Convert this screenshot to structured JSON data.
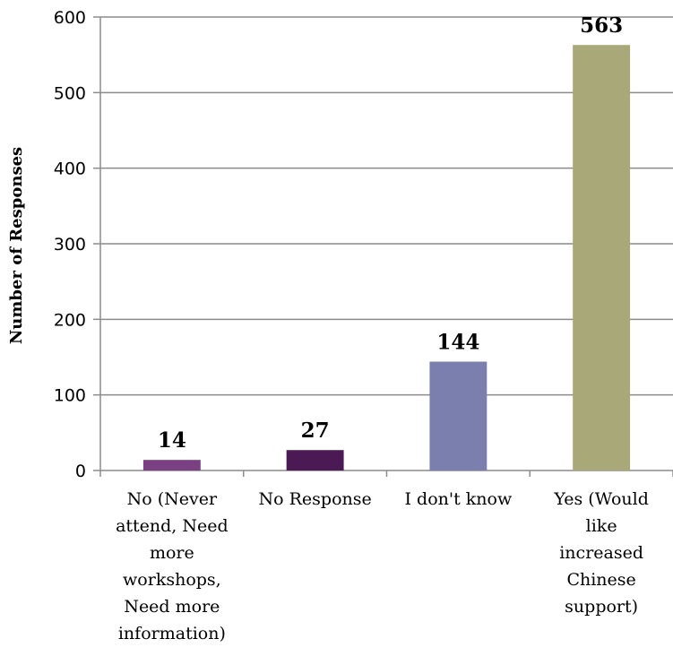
{
  "chart_data": {
    "type": "bar",
    "categories": [
      "No (Never attend, Need more workshops, Need more information)",
      "No Response",
      "I don't know",
      "Yes (Would like increased Chinese support)"
    ],
    "category_label_lines": [
      [
        "No (Never",
        "attend, Need",
        "more",
        "workshops,",
        "Need more",
        "information)"
      ],
      [
        "No Response"
      ],
      [
        "I don't know"
      ],
      [
        "Yes (Would",
        "like",
        "increased",
        "Chinese",
        "support)"
      ]
    ],
    "values": [
      14,
      27,
      144,
      563
    ],
    "data_labels": [
      "14",
      "27",
      "144",
      "563"
    ],
    "colors": [
      "#7b3f84",
      "#4b1a55",
      "#7a7fad",
      "#a9a878"
    ],
    "ylabel": "Number of Responses",
    "xlabel": "",
    "ylim": [
      0,
      600
    ],
    "yticks": [
      "0",
      "100",
      "200",
      "300",
      "400",
      "500",
      "600"
    ],
    "grid": true
  }
}
